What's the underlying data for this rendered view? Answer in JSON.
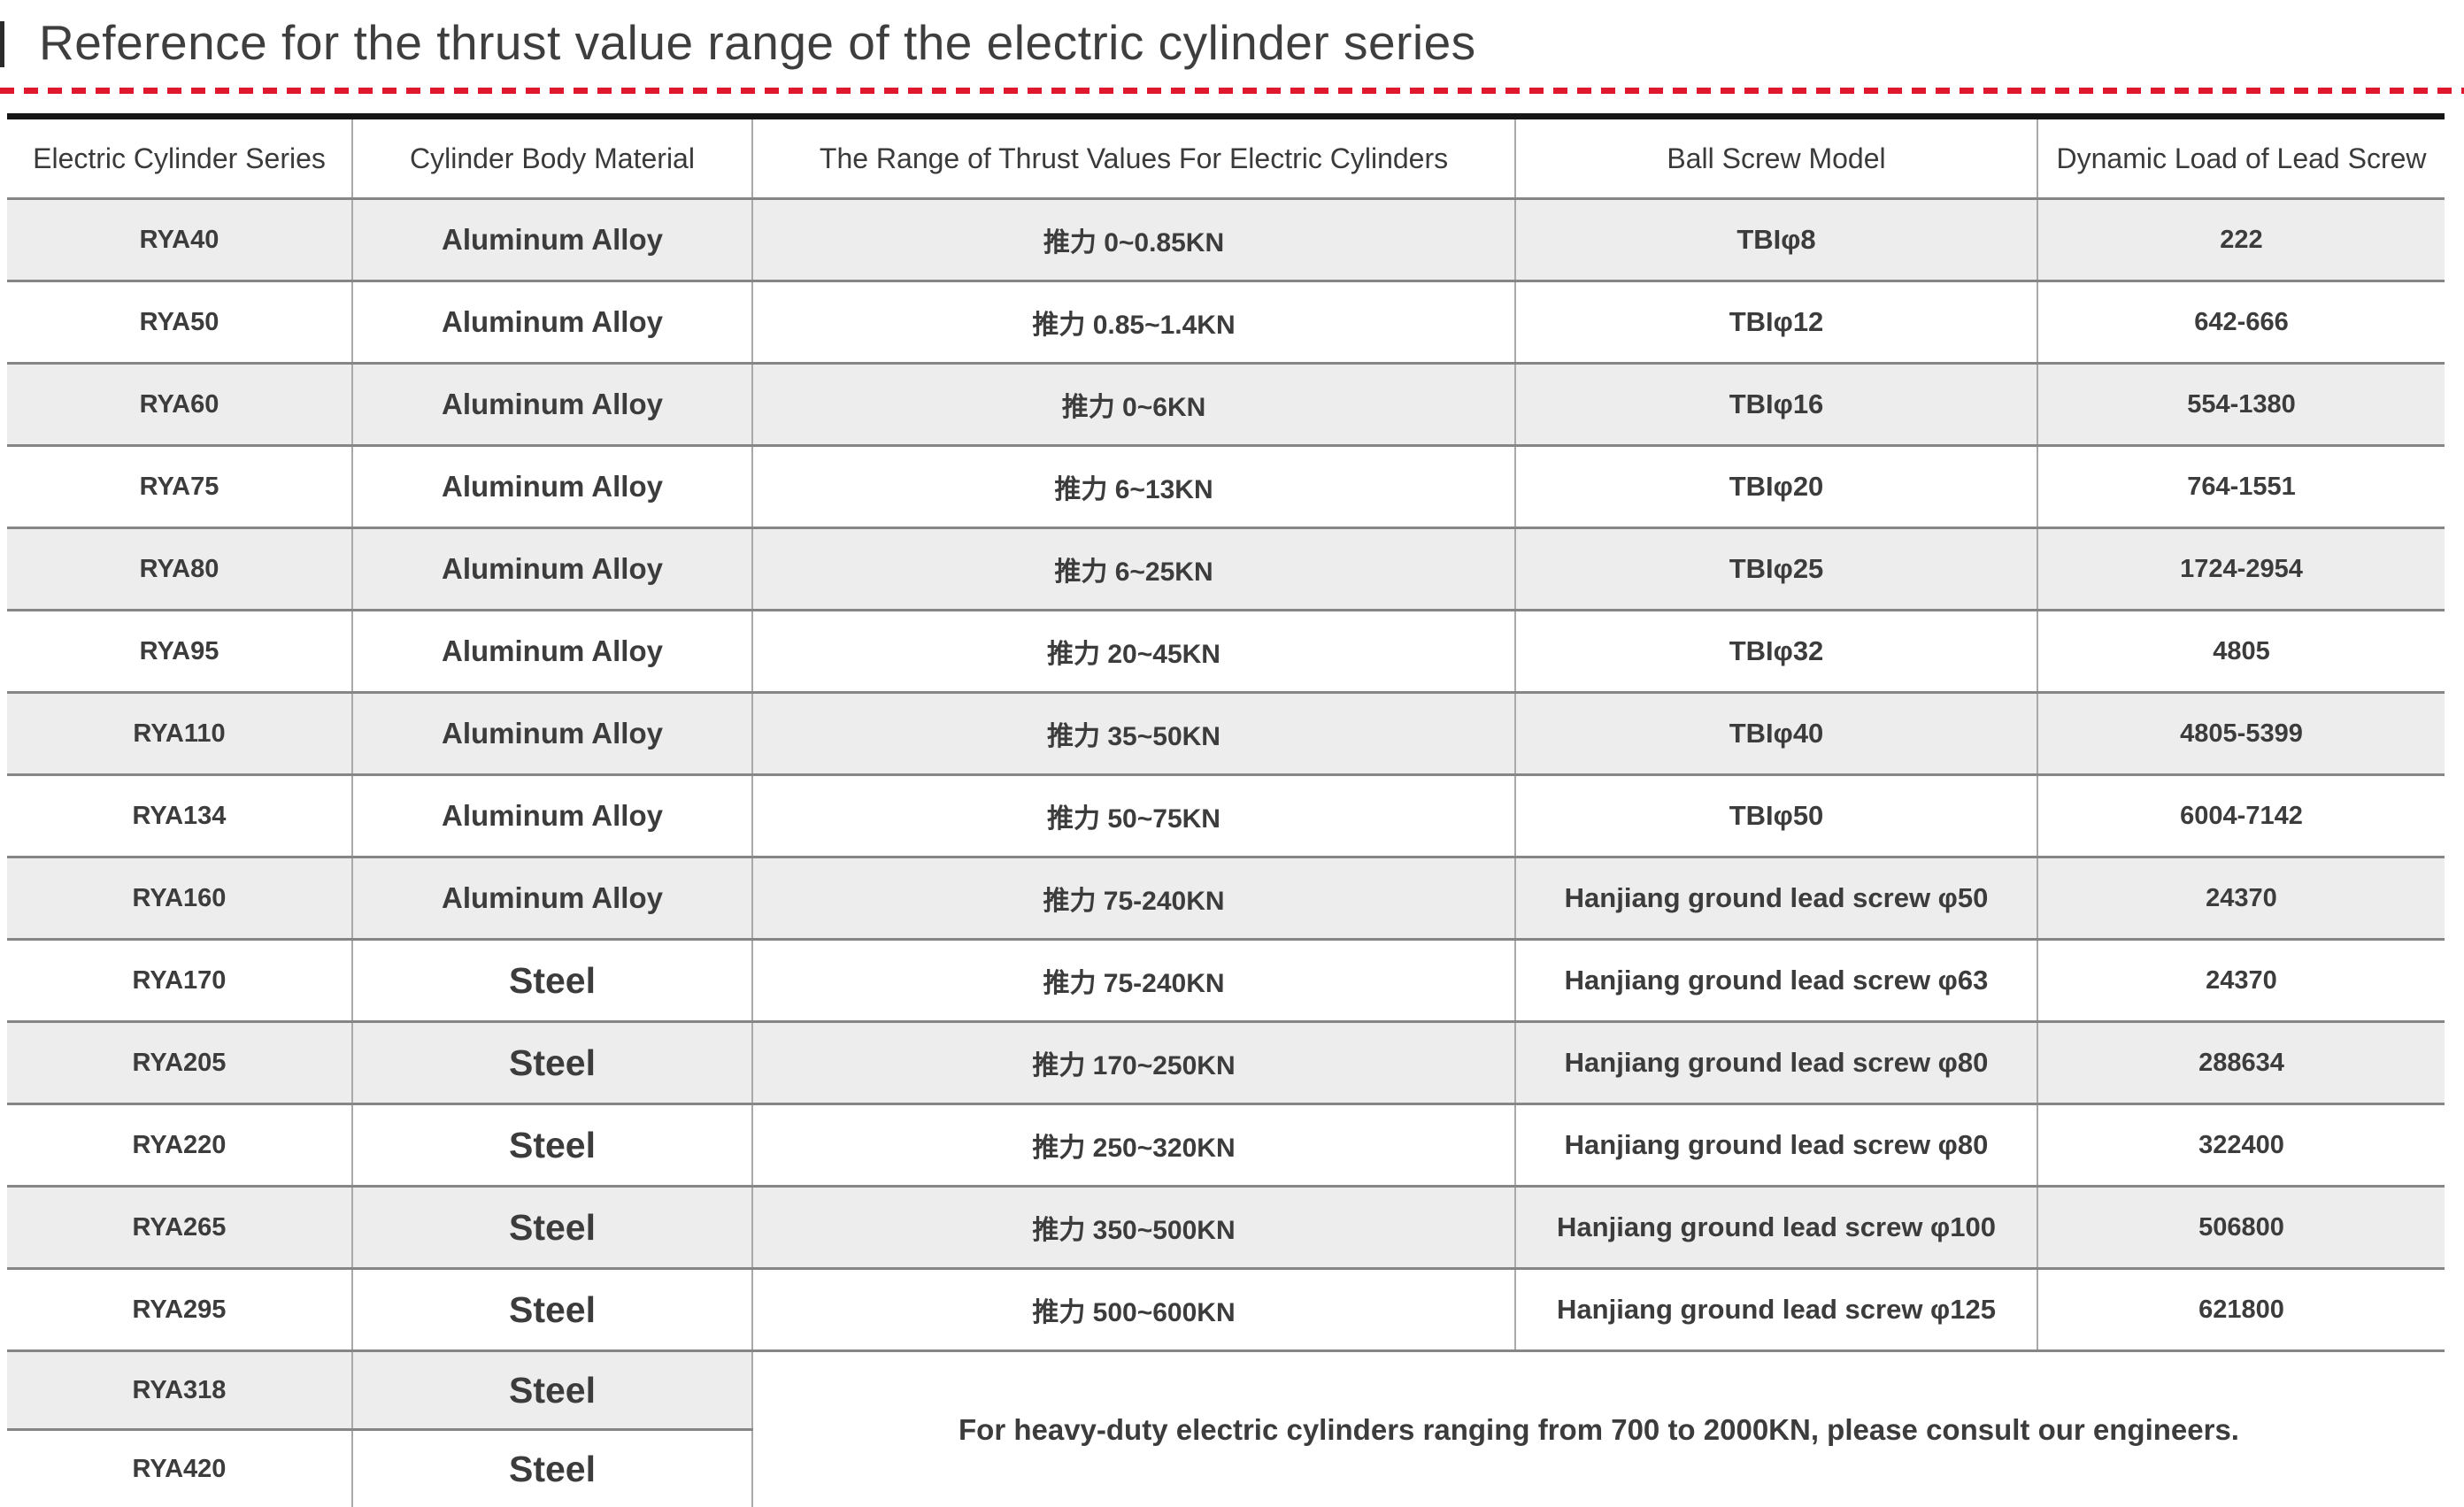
{
  "page": {
    "title": "Reference for the thrust value range of the electric cylinder series",
    "accent_color": "#e0182d",
    "row_alt_bg": "#ededed",
    "text_color": "#3c3c3c"
  },
  "table": {
    "columns": [
      "Electric Cylinder Series",
      "Cylinder Body Material",
      "The Range of Thrust Values For Electric Cylinders",
      "Ball Screw Model",
      "Dynamic Load of Lead Screw"
    ],
    "rows": [
      {
        "series": "RYA40",
        "material": "Aluminum Alloy",
        "thrust": "推力 0~0.85KN",
        "ball_screw": "TBIφ8",
        "dynamic_load": "222"
      },
      {
        "series": "RYA50",
        "material": "Aluminum Alloy",
        "thrust": "推力 0.85~1.4KN",
        "ball_screw": "TBIφ12",
        "dynamic_load": "642-666"
      },
      {
        "series": "RYA60",
        "material": "Aluminum Alloy",
        "thrust": "推力 0~6KN",
        "ball_screw": "TBIφ16",
        "dynamic_load": "554-1380"
      },
      {
        "series": "RYA75",
        "material": "Aluminum Alloy",
        "thrust": "推力 6~13KN",
        "ball_screw": "TBIφ20",
        "dynamic_load": "764-1551"
      },
      {
        "series": "RYA80",
        "material": "Aluminum Alloy",
        "thrust": "推力 6~25KN",
        "ball_screw": "TBIφ25",
        "dynamic_load": "1724-2954"
      },
      {
        "series": "RYA95",
        "material": "Aluminum Alloy",
        "thrust": "推力 20~45KN",
        "ball_screw": "TBIφ32",
        "dynamic_load": "4805"
      },
      {
        "series": "RYA110",
        "material": "Aluminum Alloy",
        "thrust": "推力 35~50KN",
        "ball_screw": "TBIφ40",
        "dynamic_load": "4805-5399"
      },
      {
        "series": "RYA134",
        "material": "Aluminum Alloy",
        "thrust": "推力 50~75KN",
        "ball_screw": "TBIφ50",
        "dynamic_load": "6004-7142"
      },
      {
        "series": "RYA160",
        "material": "Aluminum Alloy",
        "thrust": "推力 75-240KN",
        "ball_screw": "Hanjiang ground lead screw φ50",
        "dynamic_load": "24370"
      },
      {
        "series": "RYA170",
        "material": "Steel",
        "thrust": "推力 75-240KN",
        "ball_screw": "Hanjiang ground lead screw φ63",
        "dynamic_load": "24370"
      },
      {
        "series": "RYA205",
        "material": "Steel",
        "thrust": "推力 170~250KN",
        "ball_screw": "Hanjiang ground lead screw φ80",
        "dynamic_load": "288634"
      },
      {
        "series": "RYA220",
        "material": "Steel",
        "thrust": "推力 250~320KN",
        "ball_screw": "Hanjiang ground lead screw φ80",
        "dynamic_load": "322400"
      },
      {
        "series": "RYA265",
        "material": "Steel",
        "thrust": "推力 350~500KN",
        "ball_screw": "Hanjiang ground lead screw φ100",
        "dynamic_load": "506800"
      },
      {
        "series": "RYA295",
        "material": "Steel",
        "thrust": "推力 500~600KN",
        "ball_screw": "Hanjiang ground lead screw φ125",
        "dynamic_load": "621800"
      },
      {
        "series": "RYA318",
        "material": "Steel"
      },
      {
        "series": "RYA420",
        "material": "Steel"
      }
    ],
    "note": "For heavy-duty electric cylinders ranging from 700 to 2000KN, please consult our engineers."
  }
}
